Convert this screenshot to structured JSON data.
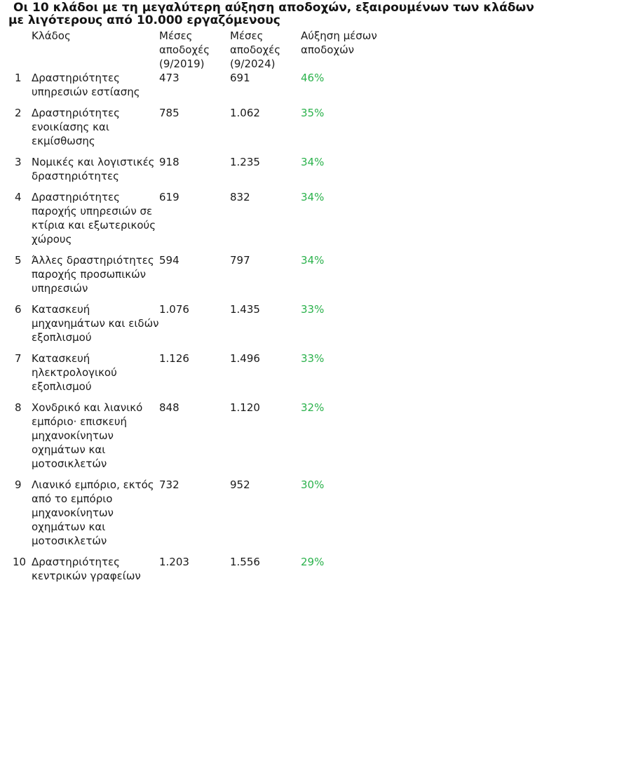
{
  "title": {
    "line1": "Οι 10 κλάδοι με τη μεγαλύτερη αύξηση αποδοχών, εξαιρουμένων των κλάδων",
    "line2": "με λιγότερους από 10.000 εργαζόμενους"
  },
  "table": {
    "headers": {
      "sector": "Κλάδος",
      "wage2019": "Μέσες αποδοχές (9/2019)",
      "wage2024": "Μέσες αποδοχές (9/2024)",
      "growth": "Αύξηση μέσων αποδοχών"
    },
    "rows": [
      {
        "rank": "1",
        "sector": "Δραστηριότητες υπηρεσιών εστίασης",
        "wage2019": "473",
        "wage2024": "691",
        "growth": "46%"
      },
      {
        "rank": "2",
        "sector": "Δραστηριότητες ενοικίασης και εκμίσθωσης",
        "wage2019": "785",
        "wage2024": "1.062",
        "growth": "35%"
      },
      {
        "rank": "3",
        "sector": "Νομικές και λογιστικές δραστηριότητες",
        "wage2019": "918",
        "wage2024": "1.235",
        "growth": "34%"
      },
      {
        "rank": "4",
        "sector": "Δραστηριότητες παροχής υπηρεσιών σε κτίρια και εξωτερικούς χώρους",
        "wage2019": "619",
        "wage2024": "832",
        "growth": "34%"
      },
      {
        "rank": "5",
        "sector": "Άλλες δραστηριότητες παροχής προσωπικών υπηρεσιών",
        "wage2019": "594",
        "wage2024": "797",
        "growth": "34%"
      },
      {
        "rank": "6",
        "sector": "Κατασκευή μηχανημάτων και ειδών εξοπλισμού",
        "wage2019": "1.076",
        "wage2024": "1.435",
        "growth": "33%"
      },
      {
        "rank": "7",
        "sector": "Κατασκευή ηλεκτρολογικού εξοπλισμού",
        "wage2019": "1.126",
        "wage2024": "1.496",
        "growth": "33%"
      },
      {
        "rank": "8",
        "sector": "Χονδρικό και λιανικό εμπόριο· επισκευή μηχανοκίνητων οχημάτων και μοτοσικλετών",
        "wage2019": "848",
        "wage2024": "1.120",
        "growth": "32%"
      },
      {
        "rank": "9",
        "sector": "Λιανικό εμπόριο, εκτός από το εμπόριο μηχανοκίνητων οχημάτων και μοτοσικλετών",
        "wage2019": "732",
        "wage2024": "952",
        "growth": "30%"
      },
      {
        "rank": "10",
        "sector": "Δραστηριότητες κεντρικών γραφείων",
        "wage2019": "1.203",
        "wage2024": "1.556",
        "growth": "29%"
      }
    ]
  },
  "colors": {
    "growth": "#2bb24c",
    "text": "#1a1a1a"
  }
}
